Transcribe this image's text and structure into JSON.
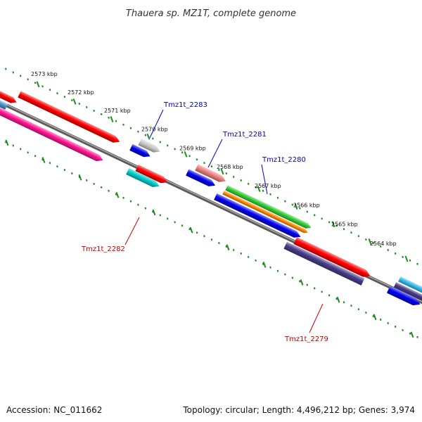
{
  "title": "Thauera sp. MZ1T, complete genome",
  "footer": {
    "accession": "Accession: NC_011662",
    "topology": "Topology: circular; Length: 4,496,212 bp; Genes: 3,974"
  },
  "ticks": [
    {
      "label": "2573 kbp"
    },
    {
      "label": "2572 kbp"
    },
    {
      "label": "2571 kbp"
    },
    {
      "label": "2570 kbp"
    },
    {
      "label": "2569 kbp"
    },
    {
      "label": "2568 kbp"
    },
    {
      "label": "2567 kbp"
    },
    {
      "label": "2566 kbp"
    },
    {
      "label": "2565 kbp"
    },
    {
      "label": "2564 kbp"
    }
  ],
  "gene_labels": [
    {
      "text": "Tmz1t_2283",
      "color": "#0000cc"
    },
    {
      "text": "Tmz1t_2281",
      "color": "#0000cc"
    },
    {
      "text": "Tmz1t_2280",
      "color": "#0000cc"
    },
    {
      "text": "Tmz1t_2282",
      "color": "#cc0000"
    },
    {
      "text": "Tmz1t_2279",
      "color": "#cc0000"
    }
  ],
  "colors": {
    "backbone": "#888888",
    "tick": "#1a8a1a",
    "red": "#ff0000",
    "blue": "#0000ee",
    "magenta": "#ff1493",
    "cyan": "#00cdcd",
    "green": "#33cc33",
    "orange": "#ff8800",
    "navy": "#483d8b",
    "gray": "#c8c8c8",
    "salmon": "#f08080",
    "steel": "#4a90c8",
    "skyblue": "#33bbee"
  }
}
